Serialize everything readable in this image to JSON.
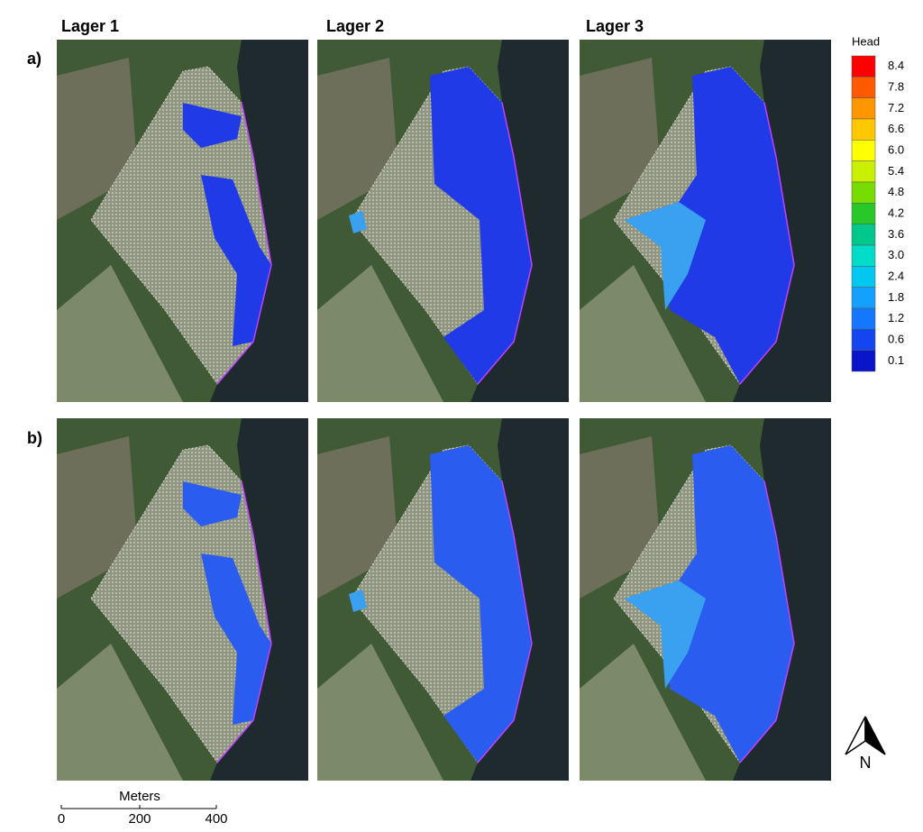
{
  "columns": [
    "Lager 1",
    "Lager 2",
    "Lager 3"
  ],
  "rows": [
    "a)",
    "b)"
  ],
  "legend": {
    "title": "Head",
    "labels": [
      "8.4",
      "7.8",
      "7.2",
      "6.6",
      "6.0",
      "5.4",
      "4.8",
      "4.2",
      "3.6",
      "3.0",
      "2.4",
      "1.8",
      "1.2",
      "0.6",
      "0.1"
    ],
    "colors": [
      "#ff0000",
      "#ff5a00",
      "#ff9600",
      "#ffc800",
      "#ffff00",
      "#c8f000",
      "#78dc00",
      "#28c828",
      "#00c88c",
      "#00dcc8",
      "#00c8f0",
      "#14a0ff",
      "#1478ff",
      "#1446f0",
      "#0a14c8"
    ]
  },
  "scale_bar": {
    "title": "Meters",
    "labels": [
      "0",
      "200",
      "400"
    ]
  },
  "north_arrow": "N"
}
